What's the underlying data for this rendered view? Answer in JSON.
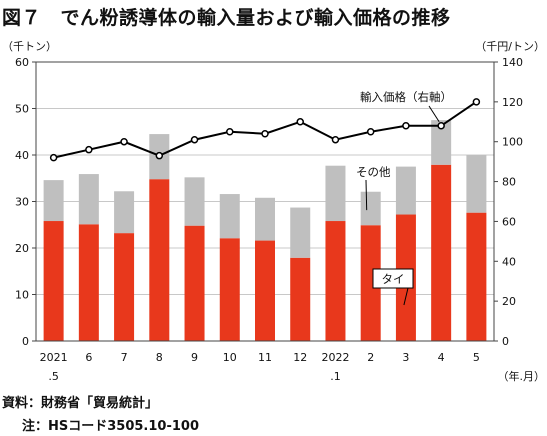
{
  "title": "図７　でん粉誘導体の輸入量および輸入価格の推移",
  "source": "資料：財務省「貿易統計」",
  "note": "注：HSコード3505.10-100",
  "chart_data": {
    "type": "bar",
    "stacked": true,
    "categories": [
      {
        "line1": "2021",
        "line2": ".5"
      },
      {
        "line1": "6",
        "line2": ""
      },
      {
        "line1": "7",
        "line2": ""
      },
      {
        "line1": "8",
        "line2": ""
      },
      {
        "line1": "9",
        "line2": ""
      },
      {
        "line1": "10",
        "line2": ""
      },
      {
        "line1": "11",
        "line2": ""
      },
      {
        "line1": "12",
        "line2": ""
      },
      {
        "line1": "2022",
        "line2": ".1"
      },
      {
        "line1": "2",
        "line2": ""
      },
      {
        "line1": "3",
        "line2": ""
      },
      {
        "line1": "4",
        "line2": ""
      },
      {
        "line1": "5",
        "line2": ""
      }
    ],
    "x_unit": "（年.月）",
    "left_axis": {
      "unit": "（千トン）",
      "min": 0,
      "max": 60,
      "ticks": [
        0,
        10,
        20,
        30,
        40,
        50,
        60
      ]
    },
    "right_axis": {
      "unit": "（千円/トン）",
      "min": 0,
      "max": 140,
      "ticks": [
        0,
        20,
        40,
        60,
        80,
        100,
        120,
        140
      ]
    },
    "grid": true,
    "series": [
      {
        "name": "タイ",
        "type": "bar",
        "axis": "left",
        "color": "#e8381c",
        "values": [
          25.8,
          25.1,
          23.2,
          34.8,
          24.8,
          22.1,
          21.6,
          17.9,
          25.8,
          24.9,
          27.2,
          37.9,
          27.6
        ]
      },
      {
        "name": "その他",
        "type": "bar",
        "axis": "left",
        "color": "#bfbfbf",
        "values": [
          8.8,
          10.8,
          9.0,
          9.7,
          10.4,
          9.5,
          9.2,
          10.8,
          11.9,
          7.2,
          10.3,
          9.6,
          12.4
        ]
      },
      {
        "name": "輸入価格（右軸）",
        "type": "line",
        "axis": "right",
        "color": "#000000",
        "values": [
          92,
          96,
          100,
          93,
          101,
          105,
          104,
          110,
          101,
          105,
          108,
          108,
          120
        ]
      }
    ]
  }
}
